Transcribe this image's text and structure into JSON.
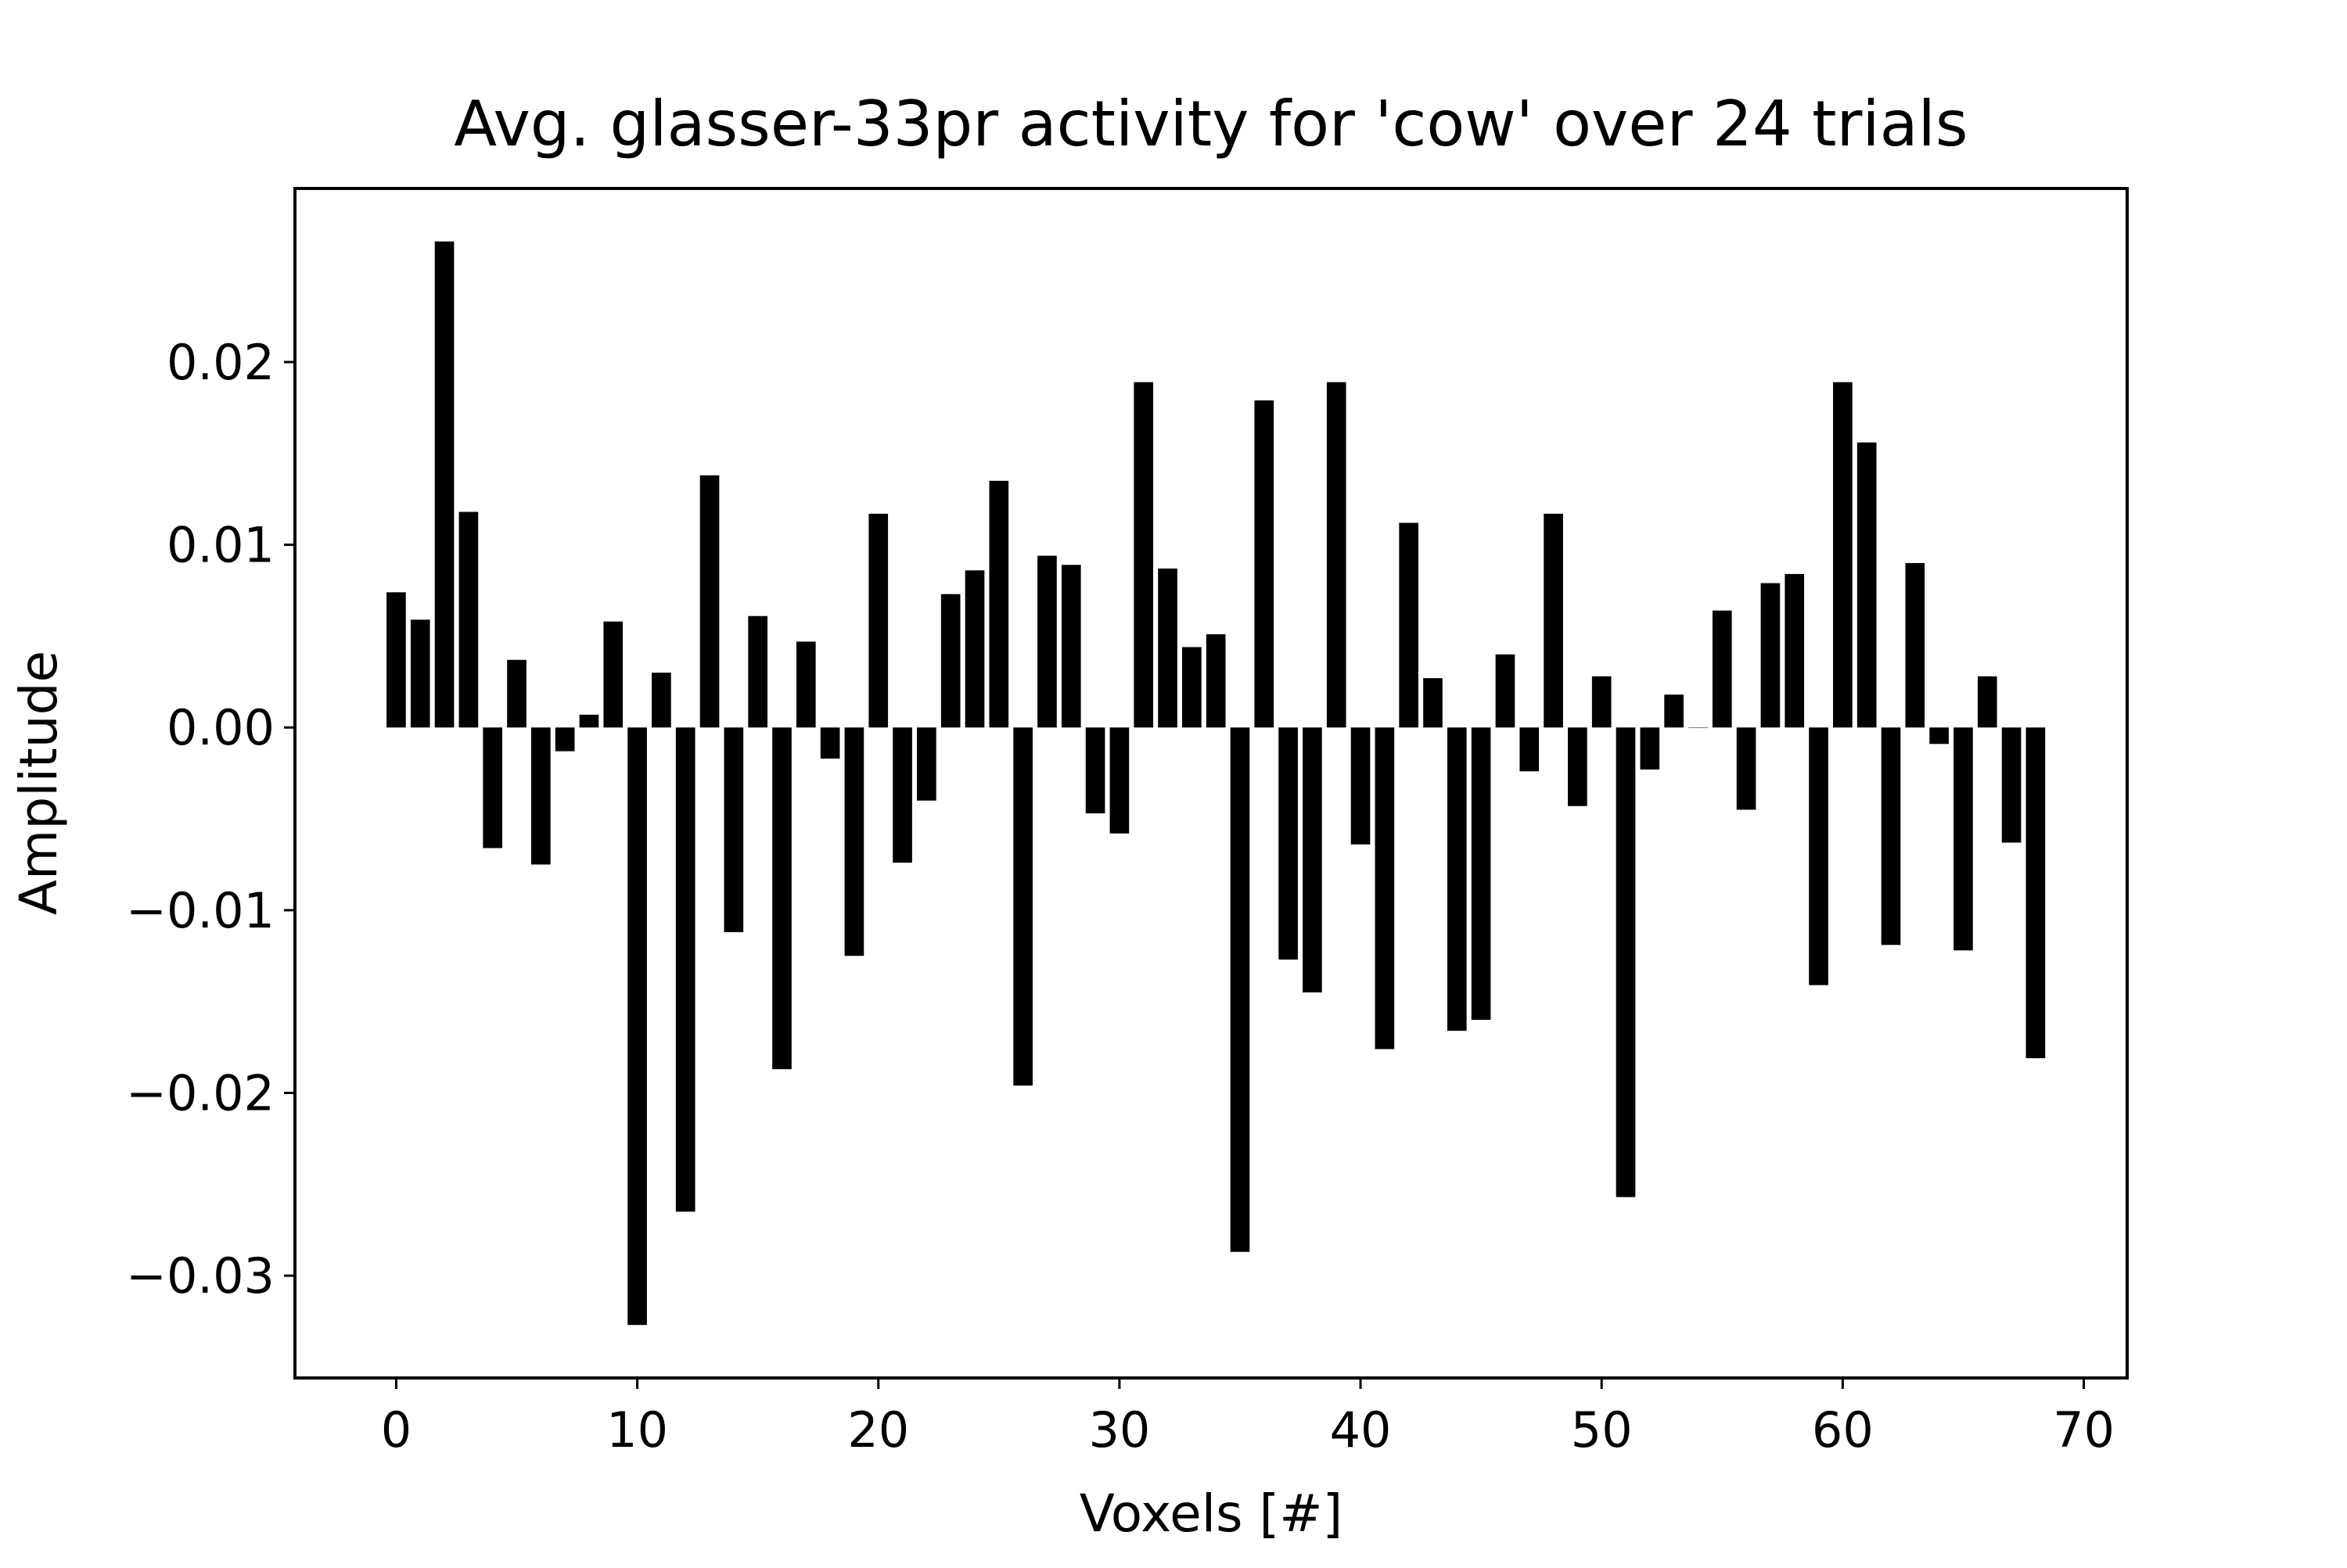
{
  "chart_data": {
    "type": "bar",
    "title": "Avg. glasser-33pr activity for 'cow' over 24 trials",
    "xlabel": "Voxels [#]",
    "ylabel": "Amplitude",
    "xlim": [
      -4.2,
      71.8
    ],
    "ylim": [
      -0.0356,
      0.0295
    ],
    "xticks": [
      0,
      10,
      20,
      30,
      40,
      50,
      60,
      70
    ],
    "xtick_labels": [
      "0",
      "10",
      "20",
      "30",
      "40",
      "50",
      "60",
      "70"
    ],
    "yticks": [
      0.02,
      0.01,
      0.0,
      -0.01,
      -0.02,
      -0.03
    ],
    "ytick_labels": [
      "0.02",
      "0.01",
      "0.00",
      "−0.01",
      "−0.02",
      "−0.03"
    ],
    "grid": false,
    "bar_color": "#000000",
    "x": [
      0,
      1,
      2,
      3,
      4,
      5,
      6,
      7,
      8,
      9,
      10,
      11,
      12,
      13,
      14,
      15,
      16,
      17,
      18,
      19,
      20,
      21,
      22,
      23,
      24,
      25,
      26,
      27,
      28,
      29,
      30,
      31,
      32,
      33,
      34,
      35,
      36,
      37,
      38,
      39,
      40,
      41,
      42,
      43,
      44,
      45,
      46,
      47,
      48,
      49,
      50,
      51,
      52,
      53,
      54,
      55,
      56,
      57,
      58,
      59,
      60,
      61,
      62,
      63,
      64,
      65,
      66,
      67,
      68
    ],
    "values": [
      0.0074,
      0.0059,
      0.0266,
      0.0118,
      -0.0066,
      0.0037,
      -0.0075,
      -0.0013,
      0.0007,
      0.0058,
      -0.0327,
      0.003,
      -0.0265,
      0.0138,
      -0.0112,
      0.0061,
      -0.0187,
      0.0047,
      -0.0017,
      -0.0125,
      0.0117,
      -0.0074,
      -0.004,
      0.0073,
      0.0086,
      0.0135,
      -0.0196,
      0.0094,
      0.0089,
      -0.0047,
      -0.0058,
      0.0189,
      0.0087,
      0.0044,
      0.0051,
      -0.0287,
      0.0179,
      -0.0127,
      -0.0145,
      0.0189,
      -0.0064,
      -0.0176,
      0.0112,
      0.0027,
      -0.0166,
      -0.016,
      0.004,
      -0.0024,
      0.0117,
      -0.0043,
      0.0028,
      -0.0257,
      -0.0023,
      0.0018,
      0.0,
      0.0064,
      -0.0045,
      0.0079,
      0.0084,
      -0.0141,
      0.0189,
      0.0156,
      -0.0119,
      0.009,
      -0.0009,
      -0.0122,
      0.0028,
      -0.0063,
      -0.0181
    ]
  }
}
